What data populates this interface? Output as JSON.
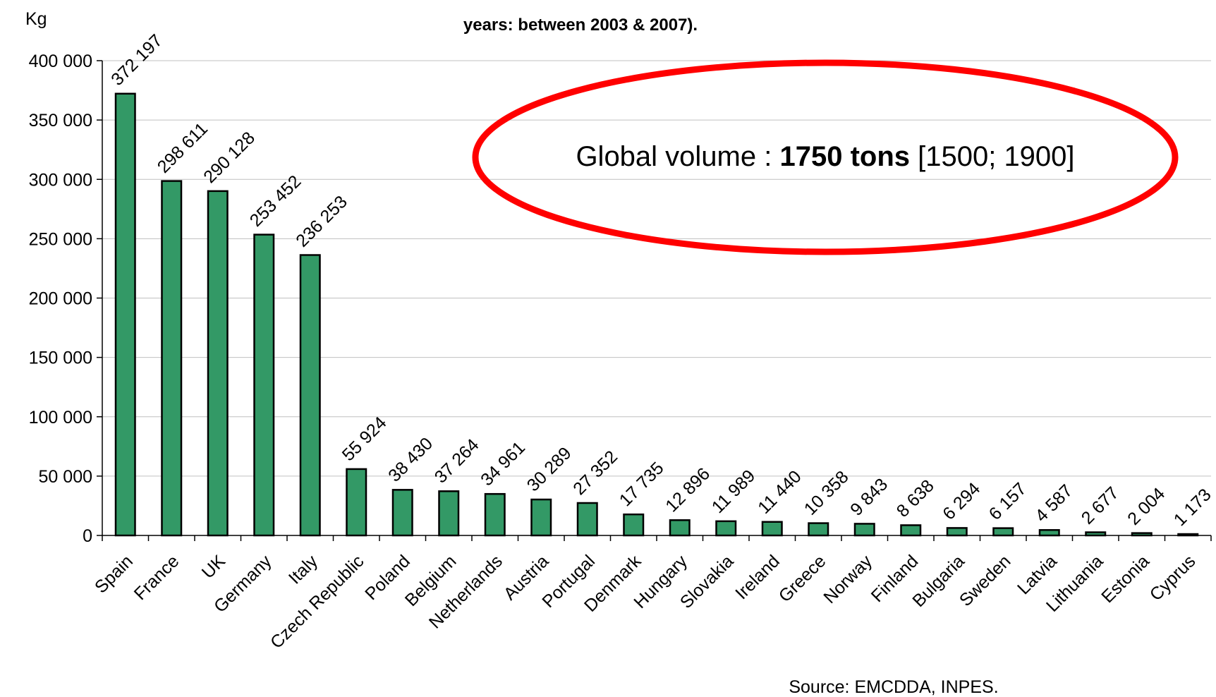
{
  "chart_data": {
    "type": "bar",
    "title_line2": "years: between 2003 & 2007).",
    "ylabel": "Kg",
    "ylim": [
      0,
      400000
    ],
    "yticks": [
      0,
      50000,
      100000,
      150000,
      200000,
      250000,
      300000,
      350000,
      400000
    ],
    "ytick_labels": [
      "0",
      "50 000",
      "100 000",
      "150 000",
      "200 000",
      "250 000",
      "300 000",
      "350 000",
      "400 000"
    ],
    "grid": true,
    "bar_color": "#339966",
    "categories": [
      "Spain",
      "France",
      "UK",
      "Germany",
      "Italy",
      "Czech Republic",
      "Poland",
      "Belgium",
      "Netherlands",
      "Austria",
      "Portugal",
      "Denmark",
      "Hungary",
      "Slovakia",
      "Ireland",
      "Greece",
      "Norway",
      "Finland",
      "Bulgaria",
      "Sweden",
      "Latvia",
      "Lithuania",
      "Estonia",
      "Cyprus"
    ],
    "values": [
      372197,
      298611,
      290128,
      253452,
      236253,
      55924,
      38430,
      37264,
      34961,
      30289,
      27352,
      17735,
      12896,
      11989,
      11440,
      10358,
      9843,
      8638,
      6294,
      6157,
      4587,
      2677,
      2004,
      1173
    ],
    "value_labels": [
      "372 197",
      "298 611",
      "290 128",
      "253 452",
      "236 253",
      "55 924",
      "38 430",
      "37 264",
      "34 961",
      "30 289",
      "27 352",
      "17 735",
      "12 896",
      "11 989",
      "11 440",
      "10 358",
      "9 843",
      "8 638",
      "6 294",
      "6 157",
      "4 587",
      "2 677",
      "2 004",
      "1 173"
    ]
  },
  "annotation": {
    "prefix": "Global volume : ",
    "bold": "1750 tons",
    "suffix": " [1500; 1900]",
    "ellipse_color": "#ff0000"
  },
  "source": "Source: EMCDDA, INPES."
}
